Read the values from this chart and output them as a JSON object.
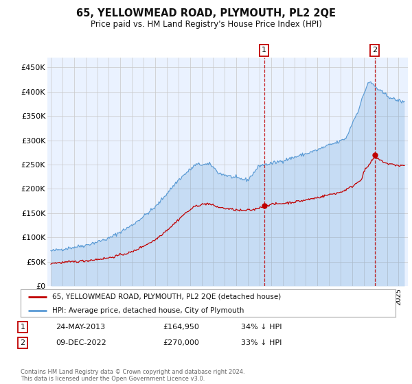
{
  "title": "65, YELLOWMEAD ROAD, PLYMOUTH, PL2 2QE",
  "subtitle": "Price paid vs. HM Land Registry's House Price Index (HPI)",
  "ylabel_ticks": [
    "£0",
    "£50K",
    "£100K",
    "£150K",
    "£200K",
    "£250K",
    "£300K",
    "£350K",
    "£400K",
    "£450K"
  ],
  "yticks": [
    0,
    50000,
    100000,
    150000,
    200000,
    250000,
    300000,
    350000,
    400000,
    450000
  ],
  "ylim": [
    0,
    470000
  ],
  "xlim_start": 1994.7,
  "xlim_end": 2025.8,
  "hpi_color": "#5B9BD5",
  "hpi_fill_alpha": 0.25,
  "price_color": "#C00000",
  "point1_x": 2013.39,
  "point1_y": 164950,
  "point2_x": 2022.93,
  "point2_y": 270000,
  "legend_line1": "65, YELLOWMEAD ROAD, PLYMOUTH, PL2 2QE (detached house)",
  "legend_line2": "HPI: Average price, detached house, City of Plymouth",
  "point1_date": "24-MAY-2013",
  "point1_price": "£164,950",
  "point1_note": "34% ↓ HPI",
  "point2_date": "09-DEC-2022",
  "point2_price": "£270,000",
  "point2_note": "33% ↓ HPI",
  "footer": "Contains HM Land Registry data © Crown copyright and database right 2024.\nThis data is licensed under the Open Government Licence v3.0.",
  "background_color": "#FFFFFF",
  "plot_bg_color": "#EAF2FF"
}
